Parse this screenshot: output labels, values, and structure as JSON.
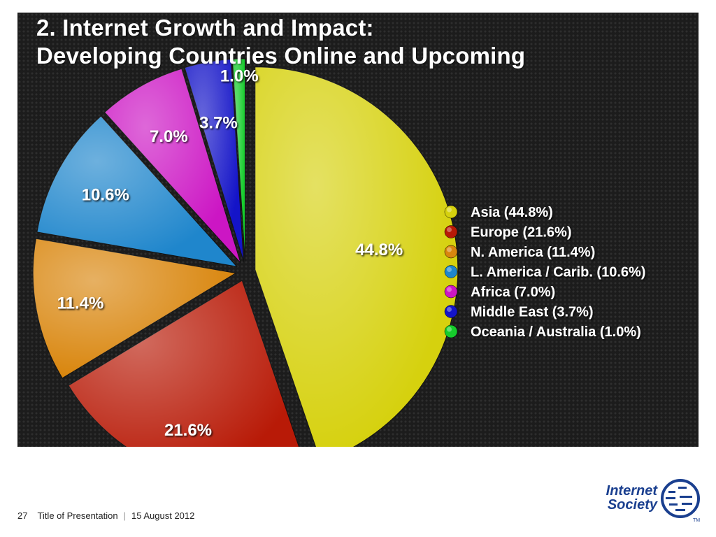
{
  "slide": {
    "title_line1": "2. Internet Growth and Impact:",
    "title_line2": "Developing Countries Online and Upcoming"
  },
  "footer": {
    "page_number": "27",
    "presentation_title": "Title of Presentation",
    "date": "15 August 2012"
  },
  "logo": {
    "line1": "Internet",
    "line2": "Society",
    "trademark": "TM",
    "brand_color": "#1a3f8f"
  },
  "chart_data": {
    "type": "pie",
    "title": "",
    "exploded": true,
    "legend_position": "right",
    "slices": [
      {
        "label": "Asia",
        "value": 44.8,
        "data_label": "44.8%",
        "legend": "Asia (44.8%)",
        "color": "#d6d10e"
      },
      {
        "label": "Europe",
        "value": 21.6,
        "data_label": "21.6%",
        "legend": "Europe (21.6%)",
        "color": "#b81a07"
      },
      {
        "label": "N. America",
        "value": 11.4,
        "data_label": "11.4%",
        "legend": "N. America (11.4%)",
        "color": "#d9860e"
      },
      {
        "label": "L. America / Carib.",
        "value": 10.6,
        "data_label": "10.6%",
        "legend": "L. America / Carib. (10.6%)",
        "color": "#1f86cc"
      },
      {
        "label": "Africa",
        "value": 7.0,
        "data_label": "7.0%",
        "legend": "Africa (7.0%)",
        "color": "#cc16c4"
      },
      {
        "label": "Middle East",
        "value": 3.7,
        "data_label": "3.7%",
        "legend": "Middle East (3.7%)",
        "color": "#1414c8"
      },
      {
        "label": "Oceania / Australia",
        "value": 1.0,
        "data_label": "1.0%",
        "legend": "Oceania / Australia (1.0%)",
        "color": "#16cc2c"
      }
    ]
  }
}
